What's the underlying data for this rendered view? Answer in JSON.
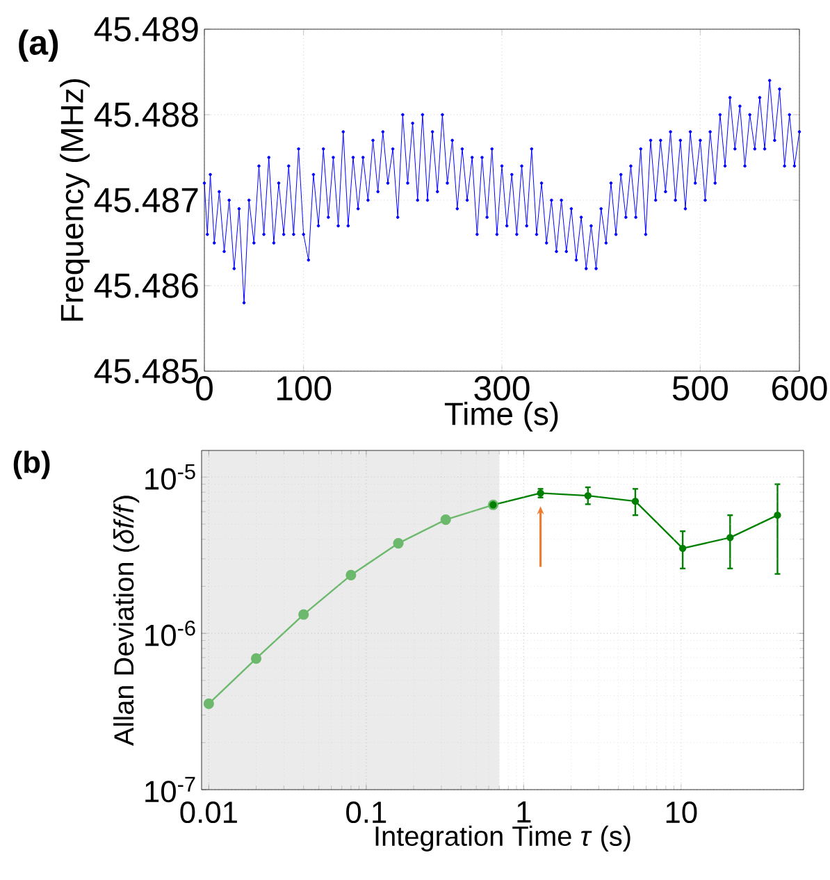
{
  "chart_data": [
    {
      "type": "line",
      "annotations": [
        "(a)"
      ],
      "xlabel": "Time (s)",
      "ylabel": "Frequency (MHz)",
      "xlim": [
        0,
        600
      ],
      "ylim": [
        45.485,
        45.489
      ],
      "xticks": [
        0,
        100,
        300,
        500,
        600
      ],
      "yticks": [
        45.485,
        45.486,
        45.487,
        45.488,
        45.489
      ],
      "grid": true,
      "marker": "circle",
      "line_style": "solid",
      "series": [
        {
          "color": "#0000ff",
          "x": [
            0,
            3,
            6,
            10,
            15,
            20,
            25,
            30,
            35,
            40,
            45,
            50,
            55,
            60,
            65,
            70,
            75,
            80,
            85,
            90,
            95,
            100,
            105,
            110,
            115,
            120,
            125,
            130,
            135,
            140,
            145,
            150,
            155,
            160,
            165,
            170,
            175,
            180,
            185,
            190,
            195,
            200,
            205,
            210,
            215,
            220,
            225,
            230,
            235,
            240,
            245,
            250,
            255,
            260,
            265,
            270,
            275,
            280,
            285,
            290,
            295,
            300,
            305,
            310,
            315,
            320,
            325,
            330,
            335,
            340,
            345,
            350,
            355,
            360,
            365,
            370,
            375,
            380,
            385,
            390,
            395,
            400,
            405,
            410,
            415,
            420,
            425,
            430,
            435,
            440,
            445,
            450,
            455,
            460,
            465,
            470,
            475,
            480,
            485,
            490,
            495,
            500,
            505,
            510,
            515,
            520,
            525,
            530,
            535,
            540,
            545,
            550,
            555,
            560,
            565,
            570,
            575,
            580,
            585,
            590,
            595,
            600
          ],
          "values": [
            45.4872,
            45.4866,
            45.4873,
            45.4865,
            45.4871,
            45.4864,
            45.487,
            45.4862,
            45.4869,
            45.4858,
            45.487,
            45.4865,
            45.4874,
            45.4866,
            45.4875,
            45.4865,
            45.4872,
            45.4866,
            45.4874,
            45.4866,
            45.4876,
            45.4866,
            45.4863,
            45.4873,
            45.4867,
            45.4876,
            45.4868,
            45.4875,
            45.4867,
            45.4878,
            45.4867,
            45.4875,
            45.4869,
            45.4875,
            45.487,
            45.4877,
            45.4871,
            45.4878,
            45.4872,
            45.4876,
            45.4868,
            45.488,
            45.4872,
            45.4879,
            45.487,
            45.488,
            45.487,
            45.4878,
            45.4871,
            45.488,
            45.4872,
            45.4877,
            45.4869,
            45.4876,
            45.487,
            45.4875,
            45.4866,
            45.4875,
            45.4868,
            45.4876,
            45.4866,
            45.4874,
            45.4867,
            45.4873,
            45.4866,
            45.4874,
            45.4867,
            45.4876,
            45.4866,
            45.4872,
            45.4865,
            45.487,
            45.4864,
            45.487,
            45.4864,
            45.4869,
            45.4863,
            45.4868,
            45.4862,
            45.4867,
            45.4862,
            45.4869,
            45.4865,
            45.4872,
            45.4866,
            45.4873,
            45.4868,
            45.4874,
            45.4868,
            45.4876,
            45.4866,
            45.4877,
            45.487,
            45.4877,
            45.4871,
            45.4878,
            45.487,
            45.4877,
            45.4869,
            45.4878,
            45.4872,
            45.4877,
            45.487,
            45.4878,
            45.4872,
            45.488,
            45.4874,
            45.4882,
            45.4876,
            45.4881,
            45.4874,
            45.488,
            45.4876,
            45.4882,
            45.4876,
            45.4884,
            45.4877,
            45.4883,
            45.4874,
            45.488,
            45.4874,
            45.4878
          ]
        }
      ]
    },
    {
      "type": "line",
      "annotations": [
        "(b)"
      ],
      "xlabel": "Integration Time *τ* (s)",
      "ylabel": "Allan Deviation (*δf/f*)",
      "log": "xy",
      "xlim": [
        0.009,
        60
      ],
      "ylim": [
        1e-07,
        1.48e-05
      ],
      "xticks": [
        0.01,
        0.1,
        1,
        10
      ],
      "yticks": [
        {
          "value": 1e-07,
          "label": "10$^{-7}$"
        },
        {
          "value": 1e-06,
          "label": "10$^{-6}$"
        },
        {
          "value": 1e-05,
          "label": "10$^{-5}$"
        }
      ],
      "grid": true,
      "marker": "circle",
      "line_style": "solid",
      "bands": [
        {
          "axis": "x",
          "from": 0.009,
          "to": 0.7,
          "color": "#ebebeb"
        }
      ],
      "series": [
        {
          "color": "#6cb86c",
          "x": [
            0.01,
            0.02,
            0.04,
            0.08,
            0.16,
            0.32,
            0.64
          ],
          "values": [
            3.55e-07,
            6.9e-07,
            1.32e-06,
            2.36e-06,
            3.77e-06,
            5.34e-06,
            6.64e-06
          ]
        },
        {
          "color": "#008000",
          "x": [
            0.64,
            1.28,
            2.56,
            5.12,
            10.24,
            20.48,
            40.96
          ],
          "values": [
            6.64e-06,
            7.9e-06,
            7.6e-06,
            7e-06,
            3.5e-06,
            4.1e-06,
            5.7e-06
          ],
          "errors": [
            null,
            [
              7.4e-06,
              8.4e-06
            ],
            [
              6.7e-06,
              8.6e-06
            ],
            [
              5.7e-06,
              8.4e-06
            ],
            [
              2.6e-06,
              4.5e-06
            ],
            [
              2.6e-06,
              5.7e-06
            ],
            [
              2.4e-06,
              9e-06
            ]
          ]
        }
      ]
    }
  ]
}
